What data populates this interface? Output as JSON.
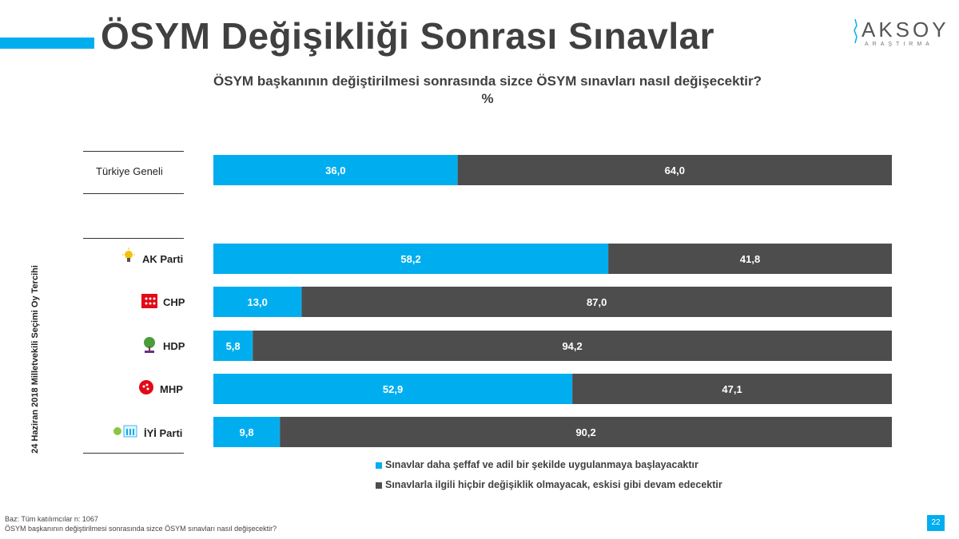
{
  "slide": {
    "title": "ÖSYM Değişikliği Sonrası Sınavlar",
    "page_number": "22",
    "logo": {
      "main": "AKSOY",
      "sub": "ARAŞTIRMA"
    }
  },
  "colors": {
    "accent": "#00aeef",
    "series_yes": "#00aeef",
    "series_no": "#4d4d4d"
  },
  "chart_data": {
    "type": "bar",
    "orientation": "horizontal",
    "stacked": true,
    "title": "ÖSYM başkanının değiştirilmesi sonrasında sizce ÖSYM sınavları nasıl değişecektir?",
    "unit": "%",
    "group_label": "24 Haziran 2018 Milletvekili Seçimi Oy Tercihi",
    "categories": [
      "Türkiye Geneli",
      "AK Parti",
      "CHP",
      "HDP",
      "MHP",
      "İYİ Parti"
    ],
    "category_display": [
      "36,0",
      "64,0"
    ],
    "series": [
      {
        "name": "Sınavlar daha şeffaf ve adil bir şekilde uygulanmaya başlayacaktır",
        "color": "#00aeef",
        "values": [
          36.0,
          58.2,
          13.0,
          5.8,
          52.9,
          9.8
        ],
        "labels": [
          "36,0",
          "58,2",
          "13,0",
          "5,8",
          "52,9",
          "9,8"
        ]
      },
      {
        "name": "Sınavlarla ilgili hiçbir değişiklik olmayacak, eskisi gibi devam edecektir",
        "color": "#4d4d4d",
        "values": [
          64.0,
          41.8,
          87.0,
          94.2,
          47.1,
          90.2
        ],
        "labels": [
          "64,0",
          "41,8",
          "87,0",
          "94,2",
          "47,1",
          "90,2"
        ]
      }
    ],
    "xlim": [
      0,
      100
    ],
    "legend_position": "bottom"
  },
  "footnotes": {
    "base": "Baz: Tüm katılımcılar n: 1067",
    "question": "ÖSYM başkanının değiştirilmesi sonrasında sizce ÖSYM sınavları nasıl değişecektir?"
  }
}
